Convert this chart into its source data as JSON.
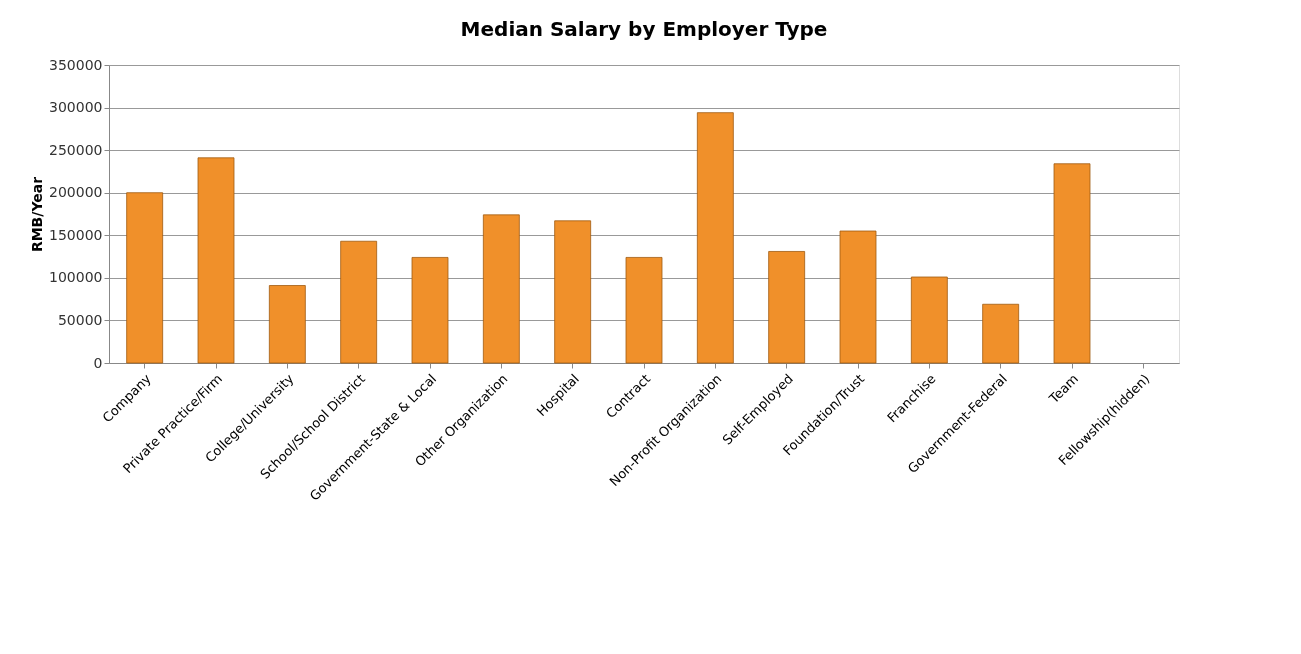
{
  "chart_data": {
    "type": "bar",
    "title": "Median Salary by Employer Type",
    "ylabel": "RMB/Year",
    "categories": [
      "Company",
      "Private Practice/Firm",
      "College/University",
      "School/School District",
      "Government-State & Local",
      "Other Organization",
      "Hospital",
      "Contract",
      "Non-Profit Organization",
      "Self-Employed",
      "Foundation/Trust",
      "Franchise",
      "Government-Federal",
      "Team",
      "Fellowship(hidden)"
    ],
    "values": [
      200000,
      241000,
      91000,
      143000,
      124000,
      174000,
      167000,
      124000,
      294000,
      131000,
      155000,
      101000,
      69000,
      234000,
      null
    ],
    "color": "#f0902a",
    "ylim": [
      0,
      350000
    ],
    "yticks": [
      0,
      50000,
      100000,
      150000,
      200000,
      250000,
      300000,
      350000
    ],
    "grid": "y"
  }
}
